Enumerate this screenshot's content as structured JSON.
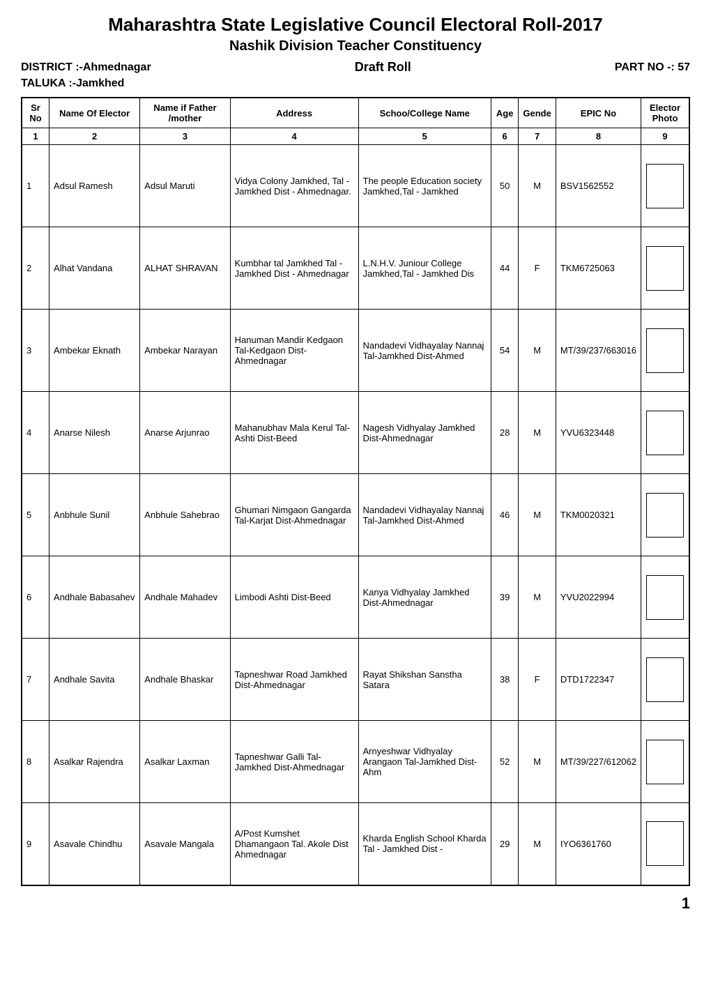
{
  "header": {
    "title_main": "Maharashtra State Legislative Council Electoral Roll-2017",
    "title_sub": "Nashik Division Teacher Constituency",
    "district_label": "DISTRICT :-Ahmednagar",
    "draft_roll_label": "Draft Roll",
    "part_no_label": "PART NO -: 57",
    "taluka_label": "TALUKA :-Jamkhed"
  },
  "columns": {
    "headers": [
      "Sr No",
      "Name Of Elector",
      "Name if Father /mother",
      "Address",
      "Schoo/College Name",
      "Age",
      "Gende",
      "EPIC No",
      "Elector Photo"
    ],
    "numbers": [
      "1",
      "2",
      "3",
      "4",
      "5",
      "6",
      "7",
      "8",
      "9"
    ]
  },
  "rows": [
    {
      "sr": "1",
      "name": "Adsul Ramesh",
      "father": "Adsul Maruti",
      "address": "Vidya Colony Jamkhed, Tal - Jamkhed Dist - Ahmednagar.",
      "school": "The people Education society Jamkhed,Tal - Jamkhed",
      "age": "50",
      "gender": "M",
      "epic": "BSV1562552"
    },
    {
      "sr": "2",
      "name": "Alhat Vandana",
      "father": "ALHAT SHRAVAN",
      "address": "Kumbhar tal Jamkhed Tal - Jamkhed Dist - Ahmednagar",
      "school": "L.N.H.V. Juniour College Jamkhed,Tal - Jamkhed Dis",
      "age": "44",
      "gender": "F",
      "epic": "TKM6725063"
    },
    {
      "sr": "3",
      "name": "Ambekar Eknath",
      "father": "Ambekar Narayan",
      "address": "Hanuman Mandir Kedgaon Tal-Kedgaon Dist-Ahmednagar",
      "school": "Nandadevi Vidhayalay Nannaj Tal-Jamkhed Dist-Ahmed",
      "age": "54",
      "gender": "M",
      "epic": "MT/39/237/663016"
    },
    {
      "sr": "4",
      "name": "Anarse Nilesh",
      "father": "Anarse Arjunrao",
      "address": "Mahanubhav Mala Kerul Tal-Ashti Dist-Beed",
      "school": "Nagesh Vidhyalay Jamkhed Dist-Ahmednagar",
      "age": "28",
      "gender": "M",
      "epic": "YVU6323448"
    },
    {
      "sr": "5",
      "name": "Anbhule Sunil",
      "father": "Anbhule Sahebrao",
      "address": "Ghumari Nimgaon Gangarda Tal-Karjat Dist-Ahmednagar",
      "school": "Nandadevi Vidhayalay Nannaj Tal-Jamkhed Dist-Ahmed",
      "age": "46",
      "gender": "M",
      "epic": "TKM0020321"
    },
    {
      "sr": "6",
      "name": "Andhale Babasahev",
      "father": "Andhale Mahadev",
      "address": "Limbodi Ashti Dist-Beed",
      "school": "Kanya Vidhyalay Jamkhed Dist-Ahmednagar",
      "age": "39",
      "gender": "M",
      "epic": "YVU2022994"
    },
    {
      "sr": "7",
      "name": "Andhale Savita",
      "father": "Andhale Bhaskar",
      "address": "Tapneshwar Road Jamkhed Dist-Ahmednagar",
      "school": "Rayat Shikshan Sanstha Satara",
      "age": "38",
      "gender": "F",
      "epic": "DTD1722347"
    },
    {
      "sr": "8",
      "name": "Asalkar Rajendra",
      "father": "Asalkar Laxman",
      "address": "Tapneshwar Galli Tal-Jamkhed Dist-Ahmednagar",
      "school": "Arnyeshwar Vidhyalay Arangaon Tal-Jamkhed Dist-Ahm",
      "age": "52",
      "gender": "M",
      "epic": "MT/39/227/612062"
    },
    {
      "sr": "9",
      "name": "Asavale Chindhu",
      "father": "Asavale Mangala",
      "address": "A/Post Kumshet Dhamangaon Tal. Akole Dist Ahmednagar",
      "school": "Kharda English School Kharda Tal - Jamkhed Dist -",
      "age": "29",
      "gender": "M",
      "epic": "IYO6361760"
    }
  ],
  "footer": {
    "page_number": "1"
  }
}
